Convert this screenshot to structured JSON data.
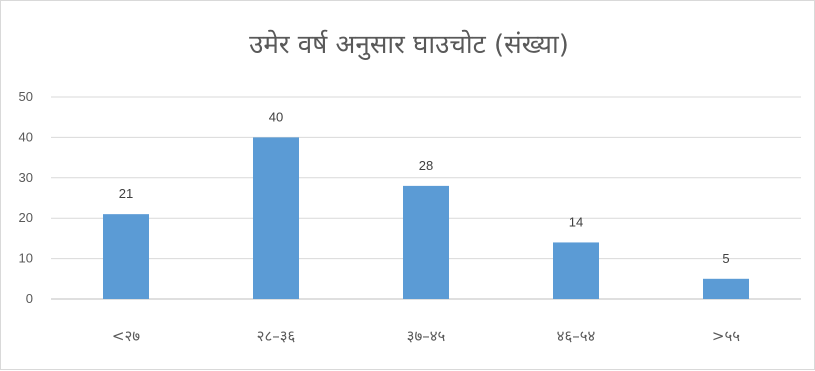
{
  "chart_data": {
    "type": "bar",
    "title": "उमेर वर्ष अनुसार घाउचोट (संख्या)",
    "categories": [
      "<२७",
      "२८–३६",
      "३७–४५",
      "४६–५४",
      ">५५"
    ],
    "values": [
      21,
      40,
      28,
      14,
      5
    ],
    "ylim": [
      0,
      50
    ],
    "yticks": [
      0,
      10,
      20,
      30,
      40,
      50
    ],
    "grid": true,
    "bar_color": "#5b9bd5",
    "xlabel": "",
    "ylabel": ""
  }
}
